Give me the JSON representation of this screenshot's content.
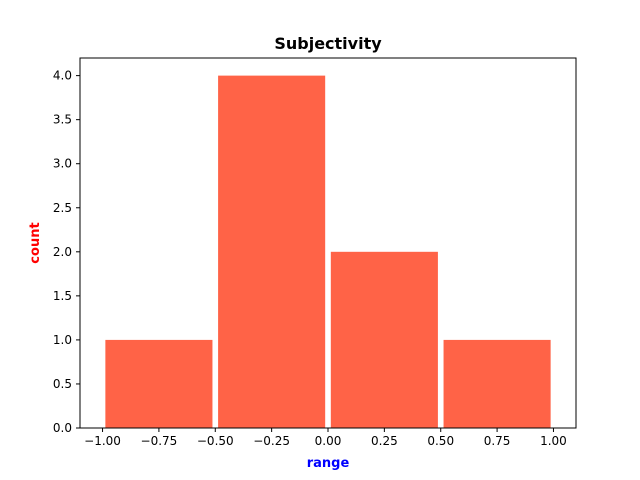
{
  "chart_data": {
    "type": "bar",
    "title": "Subjectivity",
    "xlabel": "range",
    "ylabel": "count",
    "bins": [
      {
        "start": -1.0,
        "end": -0.5,
        "value": 1
      },
      {
        "start": -0.5,
        "end": 0.0,
        "value": 4
      },
      {
        "start": 0.0,
        "end": 0.5,
        "value": 2
      },
      {
        "start": 0.5,
        "end": 1.0,
        "value": 1
      }
    ],
    "xlim": [
      -1.1,
      1.1
    ],
    "ylim": [
      0,
      4.2
    ],
    "xticks": [
      -1.0,
      -0.75,
      -0.5,
      -0.25,
      0.0,
      0.25,
      0.5,
      0.75,
      1.0
    ],
    "xtick_labels": [
      "−1.00",
      "−0.75",
      "−0.50",
      "−0.25",
      "0.00",
      "0.25",
      "0.50",
      "0.75",
      "1.00"
    ],
    "yticks": [
      0,
      0.5,
      1.0,
      1.5,
      2.0,
      2.5,
      3.0,
      3.5,
      4.0
    ],
    "ytick_labels": [
      "0.0",
      "0.5",
      "1.0",
      "1.5",
      "2.0",
      "2.5",
      "3.0",
      "3.5",
      "4.0"
    ],
    "grid": false,
    "colors": {
      "bar": "#ff6347",
      "xlabel": "#0000ff",
      "ylabel": "#ff0000",
      "axis": "#000000"
    }
  }
}
